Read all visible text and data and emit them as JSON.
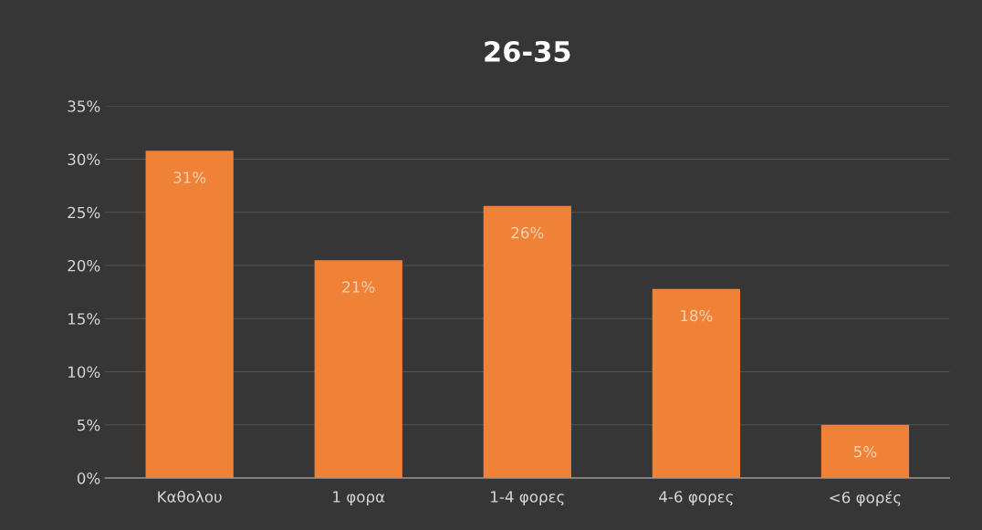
{
  "chart_data": {
    "type": "bar",
    "title": "26-35",
    "categories": [
      "Καθολου",
      "1 φορα",
      "1-4 φορες",
      "4-6 φορες",
      "<6 φορές"
    ],
    "values": [
      30.8,
      20.5,
      25.6,
      17.8,
      5.0
    ],
    "value_labels": [
      "31%",
      "21%",
      "26%",
      "18%",
      "5%"
    ],
    "color": "#ef8236",
    "ylim": [
      0,
      35
    ],
    "yticks": [
      {
        "value": 0,
        "label": "0%"
      },
      {
        "value": 5,
        "label": "5%"
      },
      {
        "value": 10,
        "label": "10%"
      },
      {
        "value": 15,
        "label": "15%"
      },
      {
        "value": 20,
        "label": "20%"
      },
      {
        "value": 25,
        "label": "25%"
      },
      {
        "value": 30,
        "label": "30%"
      },
      {
        "value": 35,
        "label": "35%"
      }
    ],
    "grid": "y"
  }
}
